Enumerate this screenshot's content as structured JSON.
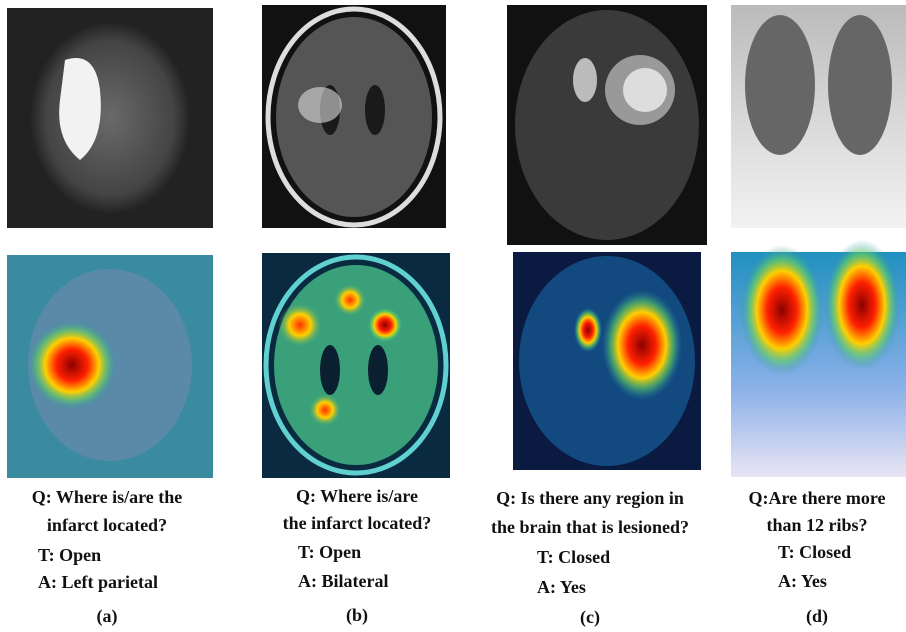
{
  "panels": [
    {
      "question": [
        "Q: Where is/are the",
        "infarct located?"
      ],
      "type": "T: Open",
      "answer": "A: Left parietal",
      "label": "(a)"
    },
    {
      "question": [
        "Q: Where is/are",
        "the infarct located?"
      ],
      "type": "T: Open",
      "answer": "A: Bilateral",
      "label": "(b)"
    },
    {
      "question": [
        "Q: Is there any region in",
        "the brain that is lesioned?"
      ],
      "type": "T: Closed",
      "answer": "A: Yes",
      "label": "(c)"
    },
    {
      "question": [
        "Q:Are there more",
        "than 12 ribs?"
      ],
      "type": "T: Closed",
      "answer": "A: Yes",
      "label": "(d)"
    }
  ]
}
